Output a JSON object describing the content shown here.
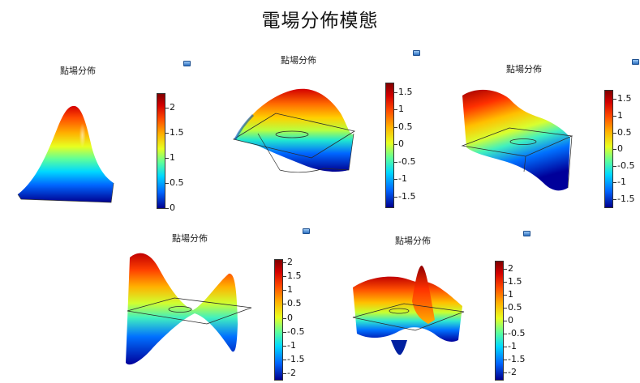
{
  "page": {
    "title": "電場分佈模態"
  },
  "colors": {
    "colormap": [
      "#00008f",
      "#0066ff",
      "#00d8ff",
      "#5eff9a",
      "#e8ff20",
      "#ffb000",
      "#ff4a00",
      "#d40000",
      "#800000"
    ],
    "frame_line": "#333333",
    "icon": "#2b6fc0"
  },
  "panels": [
    {
      "title": "點場分佈",
      "icon": "export-icon",
      "colorbar_ticks": [
        "2",
        "1.5",
        "1",
        "0.5",
        "0"
      ]
    },
    {
      "title": "點場分佈",
      "icon": "export-icon",
      "colorbar_ticks": [
        "1.5",
        "1",
        "0.5",
        "0",
        "-0.5",
        "-1",
        "-1.5"
      ]
    },
    {
      "title": "點場分佈",
      "icon": "export-icon",
      "colorbar_ticks": [
        "1.5",
        "1",
        "0.5",
        "0",
        "-0.5",
        "-1",
        "-1.5"
      ]
    },
    {
      "title": "點場分佈",
      "icon": "export-icon",
      "colorbar_ticks": [
        "2",
        "1.5",
        "1",
        "0.5",
        "0",
        "-0.5",
        "-1",
        "-1.5",
        "-2"
      ]
    },
    {
      "title": "點場分佈",
      "icon": "export-icon",
      "colorbar_ticks": [
        "2",
        "1.5",
        "1",
        "0.5",
        "0",
        "-0.5",
        "-1",
        "-1.5",
        "-2"
      ]
    }
  ],
  "chart_data": [
    {
      "type": "surface",
      "title": "點場分佈",
      "colorbar_range": [
        0,
        2.3
      ],
      "colorbar_ticks": [
        2,
        1.5,
        1,
        0.5,
        0
      ],
      "mode_shape": "single peak"
    },
    {
      "type": "surface",
      "title": "點場分佈",
      "colorbar_range": [
        -1.8,
        1.8
      ],
      "colorbar_ticks": [
        1.5,
        1,
        0.5,
        0,
        -0.5,
        -1,
        -1.5
      ],
      "mode_shape": "one positive and one negative lobe"
    },
    {
      "type": "surface",
      "title": "點場分佈",
      "colorbar_range": [
        -1.8,
        1.8
      ],
      "colorbar_ticks": [
        1.5,
        1,
        0.5,
        0,
        -0.5,
        -1,
        -1.5
      ],
      "mode_shape": "ridged lobes"
    },
    {
      "type": "surface",
      "title": "點場分佈",
      "colorbar_range": [
        -2.2,
        2.2
      ],
      "colorbar_ticks": [
        2,
        1.5,
        1,
        0.5,
        0,
        -0.5,
        -1,
        -1.5,
        -2
      ],
      "mode_shape": "saddle"
    },
    {
      "type": "surface",
      "title": "點場分佈",
      "colorbar_range": [
        -2.3,
        2.3
      ],
      "colorbar_ticks": [
        2,
        1.5,
        1,
        0.5,
        0,
        -0.5,
        -1,
        -1.5,
        -2
      ],
      "mode_shape": "central peak with rings"
    }
  ]
}
